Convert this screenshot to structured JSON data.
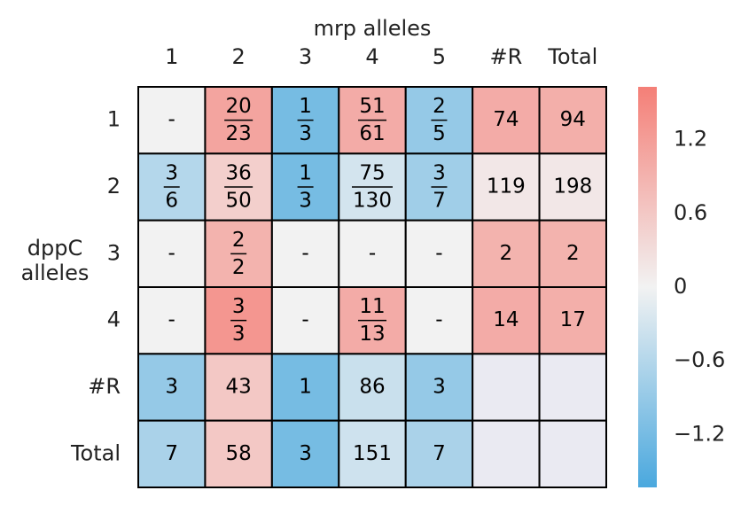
{
  "chart_data": {
    "type": "heatmap",
    "title": "mrp alleles",
    "ylabel": [
      "dppC",
      "alleles"
    ],
    "x_categories": [
      "1",
      "2",
      "3",
      "4",
      "5",
      "#R",
      "Total"
    ],
    "y_categories": [
      "1",
      "2",
      "3",
      "4",
      "#R",
      "Total"
    ],
    "values": [
      [
        0,
        1.1,
        -1.2,
        1.0,
        -0.9,
        1.0,
        0.95
      ],
      [
        -0.6,
        0.5,
        -1.2,
        -0.3,
        -0.8,
        0.15,
        0.15
      ],
      [
        0,
        0.9,
        0,
        0,
        0,
        0.9,
        0.9
      ],
      [
        0,
        1.3,
        0,
        1.0,
        0,
        1.0,
        0.95
      ],
      [
        -0.9,
        0.6,
        -1.2,
        -0.4,
        -0.9,
        null,
        null
      ],
      [
        -0.7,
        0.6,
        -1.2,
        -0.35,
        -0.7,
        null,
        null
      ]
    ],
    "cell_labels": [
      [
        "-",
        [
          "20",
          "23"
        ],
        [
          "1",
          "3"
        ],
        [
          "51",
          "61"
        ],
        [
          "2",
          "5"
        ],
        "74",
        "94"
      ],
      [
        [
          "3",
          "6"
        ],
        [
          "36",
          "50"
        ],
        [
          "1",
          "3"
        ],
        [
          "75",
          "130"
        ],
        [
          "3",
          "7"
        ],
        "119",
        "198"
      ],
      [
        "-",
        [
          "2",
          "2"
        ],
        "-",
        "-",
        "-",
        "2",
        "2"
      ],
      [
        "-",
        [
          "3",
          "3"
        ],
        "-",
        [
          "11",
          "13"
        ],
        "-",
        "14",
        "17"
      ],
      [
        "3",
        "43",
        "1",
        "86",
        "3",
        null,
        null
      ],
      [
        "7",
        "58",
        "3",
        "151",
        "7",
        null,
        null
      ]
    ],
    "colors": [
      "#4aa8de",
      "#f2f2f2",
      "#f47f77"
    ],
    "null_color": "#eaeaf2",
    "clim": [
      -1.63,
      1.63
    ],
    "cticks": [
      {
        "value": -1.2,
        "label": "−1.2"
      },
      {
        "value": -0.6,
        "label": "−0.6"
      },
      0.0,
      0.6,
      1.2
    ]
  }
}
